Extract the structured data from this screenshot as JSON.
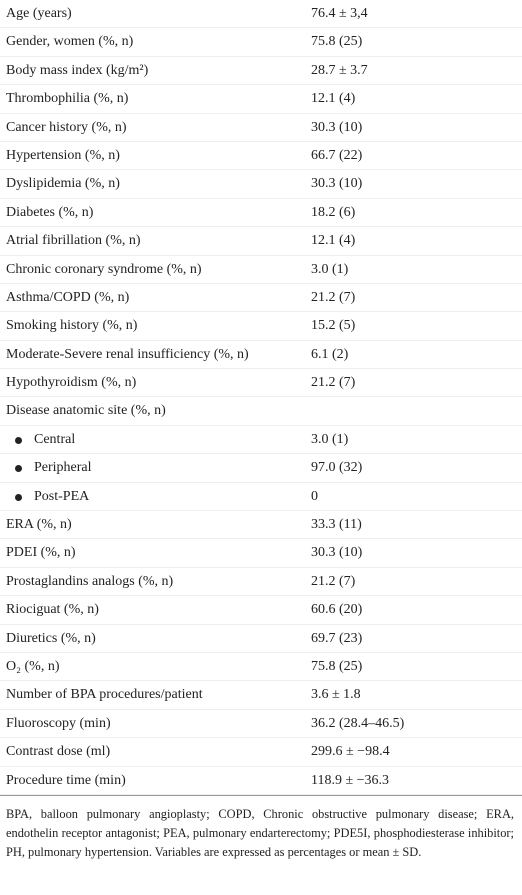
{
  "table": {
    "rows": [
      {
        "label": "Age (years)",
        "value": "76.4 ± 3,4"
      },
      {
        "label": "Gender, women (%, n)",
        "value": "75.8 (25)"
      },
      {
        "label": "Body mass index (kg/m²)",
        "value": "28.7 ± 3.7"
      },
      {
        "label": "Thrombophilia (%, n)",
        "value": "12.1 (4)"
      },
      {
        "label": "Cancer history (%, n)",
        "value": "30.3 (10)"
      },
      {
        "label": "Hypertension (%, n)",
        "value": "66.7 (22)"
      },
      {
        "label": "Dyslipidemia (%, n)",
        "value": "30.3 (10)"
      },
      {
        "label": "Diabetes (%, n)",
        "value": "18.2 (6)"
      },
      {
        "label": "Atrial fibrillation (%, n)",
        "value": "12.1 (4)"
      },
      {
        "label": "Chronic coronary syndrome (%, n)",
        "value": "3.0 (1)"
      },
      {
        "label": "Asthma/COPD (%, n)",
        "value": "21.2 (7)"
      },
      {
        "label": "Smoking history (%, n)",
        "value": "15.2 (5)"
      },
      {
        "label": "Moderate-Severe renal insufficiency (%, n)",
        "value": "6.1 (2)"
      },
      {
        "label": "Hypothyroidism (%, n)",
        "value": "21.2 (7)"
      },
      {
        "label": "Disease anatomic site (%, n)",
        "items": [
          {
            "label": "Central",
            "value": "3.0 (1)"
          },
          {
            "label": "Peripheral",
            "value": "97.0 (32)"
          },
          {
            "label": "Post-PEA",
            "value": "0"
          }
        ]
      },
      {
        "label": "ERA (%, n)",
        "value": "33.3 (11)"
      },
      {
        "label": "PDEI (%, n)",
        "value": "30.3 (10)"
      },
      {
        "label": "Prostaglandins analogs (%, n)",
        "value": "21.2 (7)"
      },
      {
        "label": "Riociguat (%, n)",
        "value": "60.6 (20)"
      },
      {
        "label": "Diuretics (%, n)",
        "value": "69.7 (23)"
      },
      {
        "label": "O₂ (%, n)",
        "value": "75.8 (25)"
      },
      {
        "label": "Number of BPA procedures/patient",
        "value": "3.6 ± 1.8"
      },
      {
        "label": "Fluoroscopy (min)",
        "value": "36.2 (28.4–46.5)"
      },
      {
        "label": "Contrast dose (ml)",
        "value": "299.6 ± −98.4"
      },
      {
        "label": "Procedure time (min)",
        "value": "118.9 ± −36.3"
      }
    ]
  },
  "footnote": "BPA, balloon pulmonary angioplasty; COPD, Chronic obstructive pulmonary disease; ERA, endothelin receptor antagonist; PEA, pulmonary endarterectomy; PDE5I, phosphodiesterase inhibitor; PH, pulmonary hypertension. Variables are expressed as percentages or mean ± SD."
}
